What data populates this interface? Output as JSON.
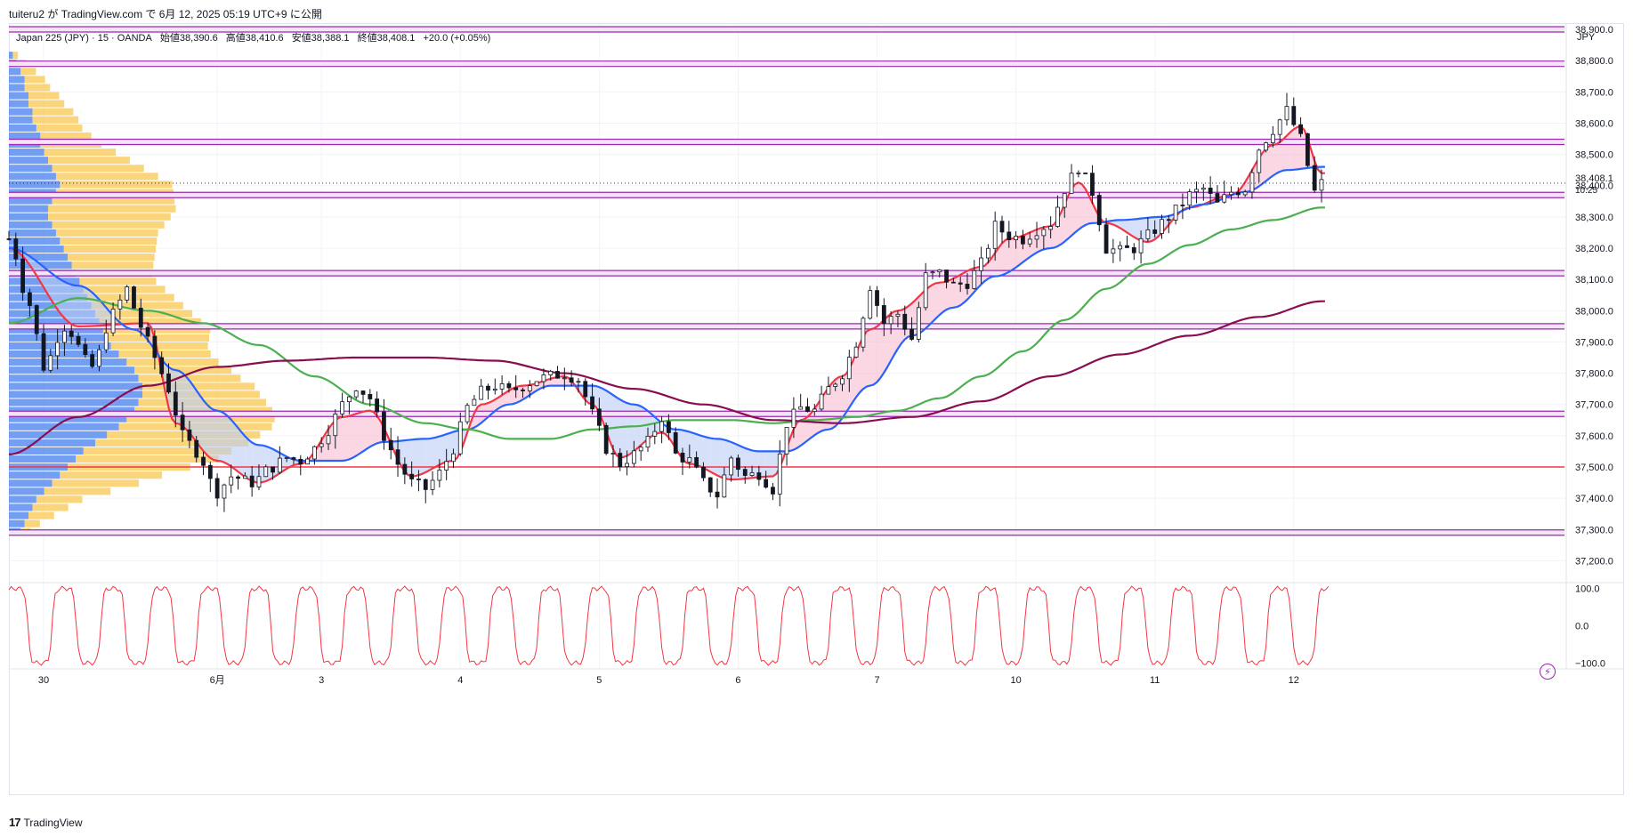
{
  "header": {
    "published": "tuiteru2 が TradingView.com で 6月 12, 2025 05:19 UTC+9 に公開"
  },
  "legend": {
    "symbol": "Japan 225 (JPY) · 15 · OANDA",
    "open": "始値38,390.6",
    "high": "高値38,410.6",
    "low": "安値38,388.1",
    "close": "終値38,408.1",
    "change": "+20.0 (+0.05%)"
  },
  "currency": "JPY",
  "last_price": {
    "label": "38,408.1",
    "countdown": "10:25"
  },
  "footer": {
    "brand": "TradingView",
    "logo": "tv-logo-icon"
  },
  "colors": {
    "bull": "#089981",
    "candle": "#131722",
    "ema_fast": "#f23645",
    "ema_mid": "#2962ff",
    "ema_slow": "#4caf50",
    "ema_long": "#880e4f",
    "level": "#9c27b0",
    "support": "#f23645",
    "vp_up": "#5b8def",
    "vp_down": "#f9c74f",
    "oscillator": "#f23645"
  },
  "chart_data": [
    {
      "type": "candlestick",
      "title": "",
      "ylim": [
        37130,
        38920
      ],
      "y_ticks": [
        37200,
        37300,
        37400,
        37500,
        37600,
        37700,
        37800,
        37900,
        38000,
        38100,
        38200,
        38300,
        38400,
        38500,
        38600,
        38700,
        38800,
        38900
      ],
      "y_tick_labels": [
        "37,200.0",
        "37,300.0",
        "37,400.0",
        "37,500.0",
        "37,600.0",
        "37,700.0",
        "37,800.0",
        "37,900.0",
        "38,000.0",
        "38,100.0",
        "38,200.0",
        "38,300.0",
        "38,400.0",
        "38,500.0",
        "38,600.0",
        "38,700.0",
        "38,800.0",
        "38,900.0"
      ],
      "x_tick_labels": [
        "30",
        "6月",
        "3",
        "4",
        "5",
        "6",
        "7",
        "10",
        "11",
        "12"
      ],
      "x_tick_index": [
        5,
        30,
        45,
        65,
        85,
        105,
        125,
        145,
        165,
        185
      ],
      "n_bars": 190,
      "price_path": [
        [
          0,
          38230
        ],
        [
          3,
          38020
        ],
        [
          5,
          37820
        ],
        [
          8,
          37950
        ],
        [
          12,
          37820
        ],
        [
          15,
          37990
        ],
        [
          17,
          38070
        ],
        [
          19,
          37950
        ],
        [
          21,
          37850
        ],
        [
          23,
          37750
        ],
        [
          25,
          37600
        ],
        [
          27,
          37550
        ],
        [
          30,
          37420
        ],
        [
          32,
          37470
        ],
        [
          35,
          37450
        ],
        [
          38,
          37500
        ],
        [
          40,
          37530
        ],
        [
          42,
          37520
        ],
        [
          44,
          37560
        ],
        [
          46,
          37620
        ],
        [
          48,
          37700
        ],
        [
          50,
          37760
        ],
        [
          52,
          37720
        ],
        [
          54,
          37600
        ],
        [
          56,
          37510
        ],
        [
          58,
          37450
        ],
        [
          60,
          37430
        ],
        [
          62,
          37480
        ],
        [
          64,
          37560
        ],
        [
          66,
          37690
        ],
        [
          68,
          37740
        ],
        [
          70,
          37760
        ],
        [
          72,
          37740
        ],
        [
          74,
          37760
        ],
        [
          76,
          37780
        ],
        [
          78,
          37790
        ],
        [
          80,
          37800
        ],
        [
          82,
          37780
        ],
        [
          84,
          37670
        ],
        [
          86,
          37560
        ],
        [
          88,
          37510
        ],
        [
          90,
          37540
        ],
        [
          92,
          37580
        ],
        [
          94,
          37660
        ],
        [
          96,
          37540
        ],
        [
          98,
          37520
        ],
        [
          100,
          37450
        ],
        [
          102,
          37410
        ],
        [
          104,
          37530
        ],
        [
          106,
          37470
        ],
        [
          108,
          37480
        ],
        [
          110,
          37430
        ],
        [
          112,
          37640
        ],
        [
          114,
          37690
        ],
        [
          116,
          37680
        ],
        [
          118,
          37750
        ],
        [
          120,
          37800
        ],
        [
          122,
          37900
        ],
        [
          124,
          38080
        ],
        [
          126,
          37960
        ],
        [
          128,
          37990
        ],
        [
          130,
          37910
        ],
        [
          132,
          38110
        ],
        [
          134,
          38120
        ],
        [
          136,
          38080
        ],
        [
          138,
          38090
        ],
        [
          140,
          38150
        ],
        [
          142,
          38270
        ],
        [
          144,
          38240
        ],
        [
          146,
          38230
        ],
        [
          148,
          38260
        ],
        [
          150,
          38280
        ],
        [
          152,
          38390
        ],
        [
          154,
          38460
        ],
        [
          156,
          38380
        ],
        [
          158,
          38200
        ],
        [
          160,
          38190
        ],
        [
          162,
          38200
        ],
        [
          164,
          38240
        ],
        [
          166,
          38280
        ],
        [
          168,
          38320
        ],
        [
          170,
          38370
        ],
        [
          172,
          38390
        ],
        [
          174,
          38340
        ],
        [
          176,
          38380
        ],
        [
          178,
          38390
        ],
        [
          180,
          38520
        ],
        [
          182,
          38580
        ],
        [
          184,
          38640
        ],
        [
          186,
          38550
        ],
        [
          188,
          38380
        ],
        [
          189,
          38408
        ]
      ],
      "series": [
        {
          "name": "",
          "color": "#f23645",
          "points": [
            [
              0,
              38200
            ],
            [
              10,
              37950
            ],
            [
              20,
              37960
            ],
            [
              24,
              37640
            ],
            [
              30,
              37520
            ],
            [
              36,
              37450
            ],
            [
              42,
              37510
            ],
            [
              48,
              37660
            ],
            [
              52,
              37680
            ],
            [
              58,
              37470
            ],
            [
              64,
              37520
            ],
            [
              68,
              37700
            ],
            [
              74,
              37760
            ],
            [
              80,
              37790
            ],
            [
              84,
              37700
            ],
            [
              88,
              37530
            ],
            [
              94,
              37610
            ],
            [
              98,
              37510
            ],
            [
              104,
              37460
            ],
            [
              110,
              37470
            ],
            [
              114,
              37650
            ],
            [
              120,
              37790
            ],
            [
              124,
              37940
            ],
            [
              128,
              38000
            ],
            [
              134,
              38090
            ],
            [
              140,
              38140
            ],
            [
              144,
              38230
            ],
            [
              150,
              38270
            ],
            [
              154,
              38410
            ],
            [
              158,
              38280
            ],
            [
              164,
              38220
            ],
            [
              170,
              38330
            ],
            [
              176,
              38370
            ],
            [
              182,
              38530
            ],
            [
              186,
              38590
            ],
            [
              189,
              38440
            ]
          ]
        },
        {
          "name": "",
          "color": "#2962ff",
          "points": [
            [
              0,
              38200
            ],
            [
              10,
              38080
            ],
            [
              18,
              37940
            ],
            [
              24,
              37810
            ],
            [
              30,
              37680
            ],
            [
              36,
              37570
            ],
            [
              42,
              37520
            ],
            [
              48,
              37520
            ],
            [
              54,
              37580
            ],
            [
              60,
              37590
            ],
            [
              66,
              37620
            ],
            [
              72,
              37700
            ],
            [
              78,
              37760
            ],
            [
              84,
              37760
            ],
            [
              90,
              37700
            ],
            [
              96,
              37620
            ],
            [
              102,
              37590
            ],
            [
              108,
              37550
            ],
            [
              112,
              37550
            ],
            [
              118,
              37620
            ],
            [
              124,
              37760
            ],
            [
              130,
              37920
            ],
            [
              136,
              38010
            ],
            [
              142,
              38110
            ],
            [
              150,
              38200
            ],
            [
              156,
              38280
            ],
            [
              160,
              38290
            ],
            [
              166,
              38300
            ],
            [
              172,
              38340
            ],
            [
              178,
              38380
            ],
            [
              184,
              38450
            ],
            [
              189,
              38460
            ]
          ]
        },
        {
          "name": "",
          "color": "#4caf50",
          "points": [
            [
              0,
              37960
            ],
            [
              10,
              38040
            ],
            [
              20,
              38000
            ],
            [
              28,
              37960
            ],
            [
              36,
              37890
            ],
            [
              44,
              37790
            ],
            [
              52,
              37700
            ],
            [
              60,
              37640
            ],
            [
              66,
              37620
            ],
            [
              72,
              37590
            ],
            [
              78,
              37590
            ],
            [
              84,
              37620
            ],
            [
              90,
              37630
            ],
            [
              96,
              37650
            ],
            [
              104,
              37650
            ],
            [
              110,
              37640
            ],
            [
              116,
              37650
            ],
            [
              122,
              37660
            ],
            [
              128,
              37680
            ],
            [
              134,
              37720
            ],
            [
              140,
              37790
            ],
            [
              146,
              37870
            ],
            [
              152,
              37970
            ],
            [
              158,
              38070
            ],
            [
              164,
              38150
            ],
            [
              170,
              38210
            ],
            [
              176,
              38260
            ],
            [
              182,
              38290
            ],
            [
              189,
              38330
            ]
          ]
        },
        {
          "name": "",
          "color": "#880e4f",
          "points": [
            [
              0,
              37540
            ],
            [
              10,
              37660
            ],
            [
              20,
              37760
            ],
            [
              30,
              37820
            ],
            [
              40,
              37840
            ],
            [
              50,
              37850
            ],
            [
              60,
              37850
            ],
            [
              70,
              37840
            ],
            [
              80,
              37800
            ],
            [
              90,
              37750
            ],
            [
              100,
              37700
            ],
            [
              110,
              37650
            ],
            [
              120,
              37640
            ],
            [
              130,
              37660
            ],
            [
              140,
              37710
            ],
            [
              150,
              37790
            ],
            [
              160,
              37860
            ],
            [
              170,
              37920
            ],
            [
              180,
              37980
            ],
            [
              189,
              38030
            ]
          ]
        }
      ],
      "levels": [
        {
          "price": 38900,
          "color": "#9c27b0"
        },
        {
          "price": 38790,
          "color": "#9c27b0"
        },
        {
          "price": 38540,
          "color": "#9c27b0"
        },
        {
          "price": 38370,
          "color": "#9c27b0"
        },
        {
          "price": 38120,
          "color": "#9c27b0"
        },
        {
          "price": 37950,
          "color": "#9c27b0"
        },
        {
          "price": 37670,
          "color": "#9c27b0"
        },
        {
          "price": 37500,
          "color": "#f23645"
        },
        {
          "price": 37290,
          "color": "#9c27b0"
        }
      ],
      "volume_profile": {
        "price_range": [
          37280,
          38830
        ],
        "rows": 60,
        "up": [
          0.3,
          0.4,
          0.5,
          0.6,
          0.7,
          0.9,
          1.1,
          1.3,
          1.5,
          1.7,
          1.9,
          2.2,
          2.5,
          2.8,
          3.0,
          3.2,
          3.3,
          3.4,
          3.4,
          3.3,
          3.2,
          3.0,
          2.8,
          2.6,
          2.5,
          2.4,
          2.3,
          2.2,
          2.1,
          2.0,
          1.9,
          1.8,
          1.7,
          1.6,
          1.5,
          1.4,
          1.3,
          1.2,
          1.1,
          1.0,
          1.0,
          1.1,
          1.2,
          1.3,
          1.2,
          1.1,
          1.0,
          0.9,
          0.8,
          0.8,
          0.7,
          0.6,
          0.6,
          0.5,
          0.5,
          0.4,
          0.4,
          0.3,
          0.2,
          0.1
        ],
        "down": [
          0.2,
          0.3,
          0.5,
          0.7,
          0.9,
          1.3,
          1.7,
          2.0,
          2.4,
          2.8,
          2.9,
          3.0,
          3.0,
          3.0,
          2.9,
          2.7,
          2.5,
          2.3,
          2.2,
          2.0,
          1.9,
          1.8,
          1.8,
          1.9,
          2.0,
          2.1,
          2.0,
          1.9,
          1.8,
          1.7,
          1.6,
          1.5,
          1.5,
          1.6,
          1.7,
          1.8,
          1.9,
          2.0,
          2.2,
          2.4,
          2.5,
          2.4,
          2.3,
          2.2,
          2.0,
          1.8,
          1.6,
          1.4,
          1.2,
          1.0,
          0.9,
          0.9,
          0.8,
          0.7,
          0.6,
          0.5,
          0.4,
          0.3,
          0.2,
          0.1
        ]
      }
    },
    {
      "type": "line",
      "title": "",
      "ylim": [
        -115,
        115
      ],
      "y_ticks": [
        100,
        0,
        -100
      ],
      "y_tick_labels": [
        "100.0",
        "0.0",
        "−100.0"
      ],
      "period_bars": 7,
      "note": ""
    }
  ]
}
